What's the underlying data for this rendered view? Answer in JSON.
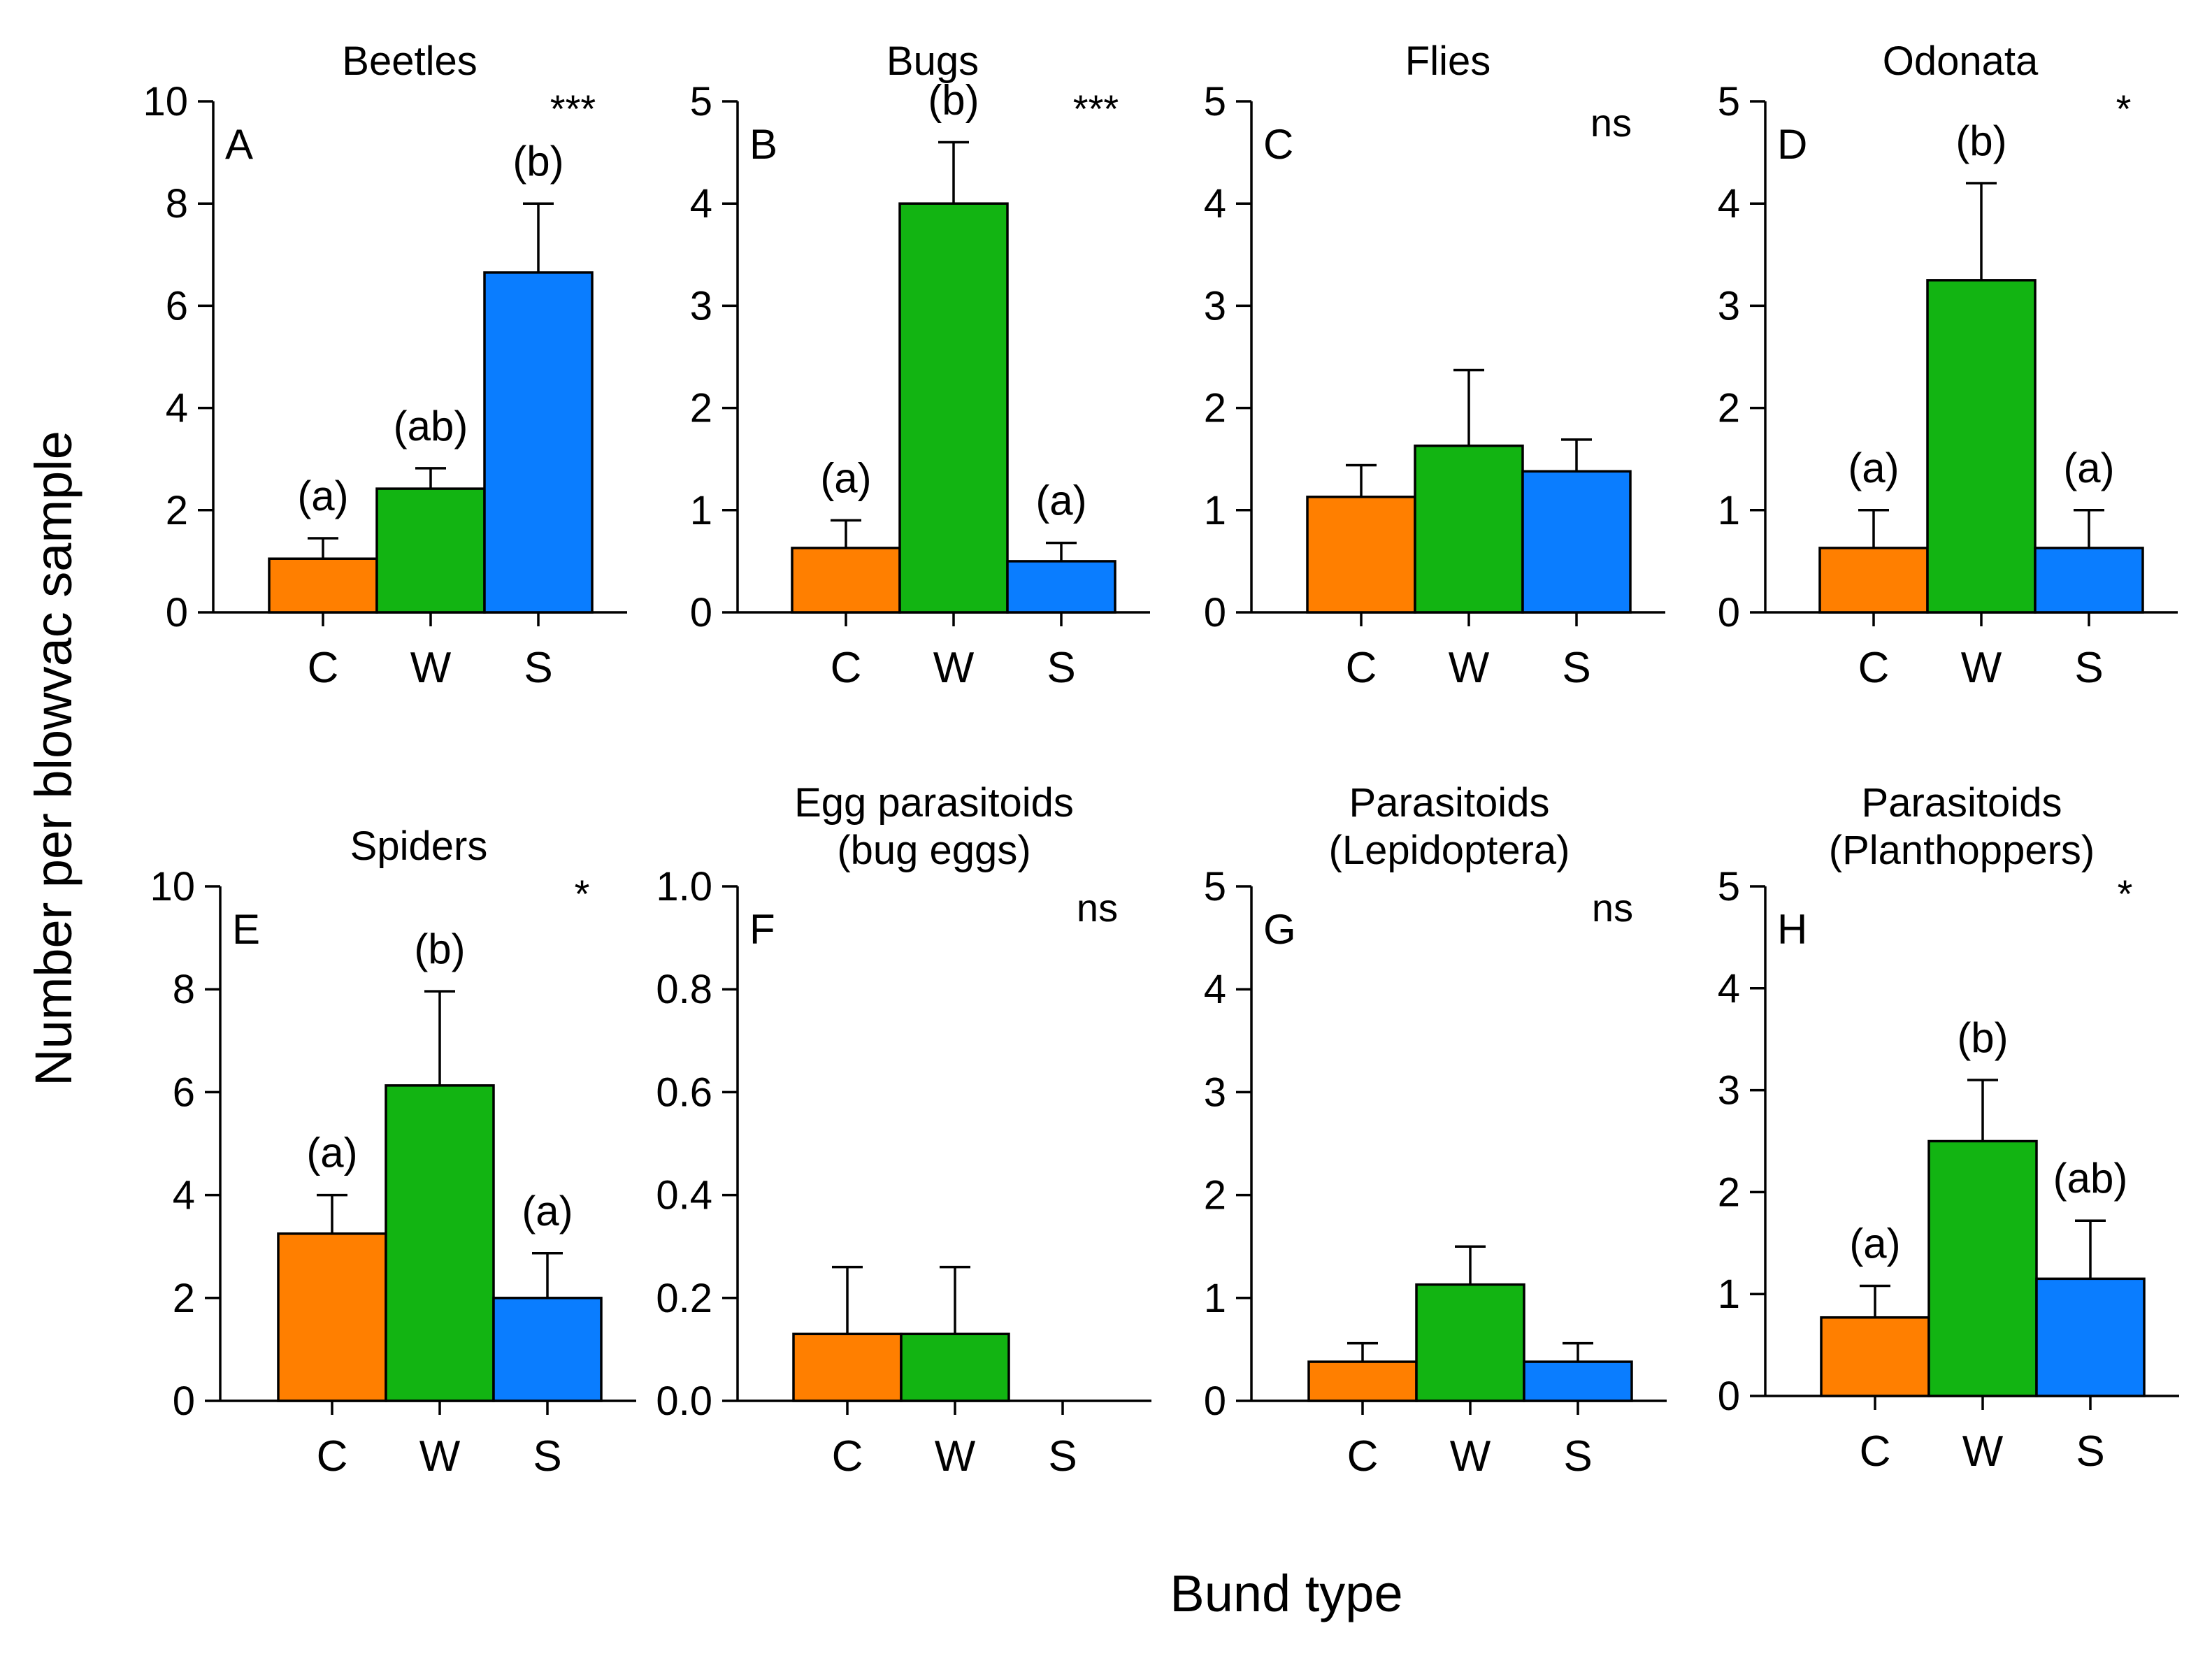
{
  "figure": {
    "ylabel": "Number per blowvac sample",
    "xlabel": "Bund type"
  },
  "colors": {
    "C": "#ff7f00",
    "W": "#12b412",
    "S": "#0a7dff"
  },
  "chart_data": [
    {
      "type": "bar",
      "panel": "A",
      "title": [
        "Beetles"
      ],
      "categories": [
        "C",
        "W",
        "S"
      ],
      "values": [
        1.05,
        2.42,
        6.65
      ],
      "errors": [
        0.4,
        0.4,
        1.35
      ],
      "ylim": [
        0,
        10
      ],
      "yticks": [
        "0",
        "2",
        "4",
        "6",
        "8",
        "10"
      ],
      "significance": "***",
      "group_labels": [
        "(a)",
        "(ab)",
        "(b)"
      ]
    },
    {
      "type": "bar",
      "panel": "B",
      "title": [
        "Bugs"
      ],
      "categories": [
        "C",
        "W",
        "S"
      ],
      "values": [
        0.63,
        4.0,
        0.5
      ],
      "errors": [
        0.27,
        0.6,
        0.18
      ],
      "ylim": [
        0,
        5
      ],
      "yticks": [
        "0",
        "1",
        "2",
        "3",
        "4",
        "5"
      ],
      "significance": "***",
      "group_labels": [
        "(a)",
        "(b)",
        "(a)"
      ]
    },
    {
      "type": "bar",
      "panel": "C",
      "title": [
        "Flies"
      ],
      "categories": [
        "C",
        "W",
        "S"
      ],
      "values": [
        1.13,
        1.63,
        1.38
      ],
      "errors": [
        0.31,
        0.74,
        0.31
      ],
      "ylim": [
        0,
        5
      ],
      "yticks": [
        "0",
        "1",
        "2",
        "3",
        "4",
        "5"
      ],
      "significance": "ns",
      "group_labels": [
        "",
        "",
        ""
      ]
    },
    {
      "type": "bar",
      "panel": "D",
      "title": [
        "Odonata"
      ],
      "categories": [
        "C",
        "W",
        "S"
      ],
      "values": [
        0.63,
        3.25,
        0.63
      ],
      "errors": [
        0.37,
        0.95,
        0.37
      ],
      "ylim": [
        0,
        5
      ],
      "yticks": [
        "0",
        "1",
        "2",
        "3",
        "4",
        "5"
      ],
      "significance": "*",
      "group_labels": [
        "(a)",
        "(b)",
        "(a)"
      ]
    },
    {
      "type": "bar",
      "panel": "E",
      "title": [
        "Spiders"
      ],
      "categories": [
        "C",
        "W",
        "S"
      ],
      "values": [
        3.25,
        6.13,
        2.0
      ],
      "errors": [
        0.75,
        1.83,
        0.87
      ],
      "ylim": [
        0,
        10
      ],
      "yticks": [
        "0",
        "2",
        "4",
        "6",
        "8",
        "10"
      ],
      "significance": "*",
      "group_labels": [
        "(a)",
        "(b)",
        "(a)"
      ]
    },
    {
      "type": "bar",
      "panel": "F",
      "title": [
        "Egg parasitoids",
        "(bug eggs)"
      ],
      "categories": [
        "C",
        "W",
        "S"
      ],
      "values": [
        0.13,
        0.13,
        0.0
      ],
      "errors": [
        0.13,
        0.13,
        0.0
      ],
      "ylim": [
        0,
        1
      ],
      "yticks": [
        "0.0",
        "0.2",
        "0.4",
        "0.6",
        "0.8",
        "1.0"
      ],
      "significance": "ns",
      "group_labels": [
        "",
        "",
        ""
      ]
    },
    {
      "type": "bar",
      "panel": "G",
      "title": [
        "Parasitoids",
        "(Lepidoptera)"
      ],
      "categories": [
        "C",
        "W",
        "S"
      ],
      "values": [
        0.38,
        1.13,
        0.38
      ],
      "errors": [
        0.18,
        0.37,
        0.18
      ],
      "ylim": [
        0,
        5
      ],
      "yticks": [
        "0",
        "1",
        "2",
        "3",
        "4",
        "5"
      ],
      "significance": "ns",
      "group_labels": [
        "",
        "",
        ""
      ]
    },
    {
      "type": "bar",
      "panel": "H",
      "title": [
        "Parasitoids",
        "(Planthoppers)"
      ],
      "categories": [
        "C",
        "W",
        "S"
      ],
      "values": [
        0.77,
        2.5,
        1.15
      ],
      "errors": [
        0.31,
        0.6,
        0.57
      ],
      "ylim": [
        0,
        5
      ],
      "yticks": [
        "0",
        "1",
        "2",
        "3",
        "4",
        "5"
      ],
      "significance": "*",
      "group_labels": [
        "(a)",
        "(b)",
        "(ab)"
      ]
    }
  ]
}
